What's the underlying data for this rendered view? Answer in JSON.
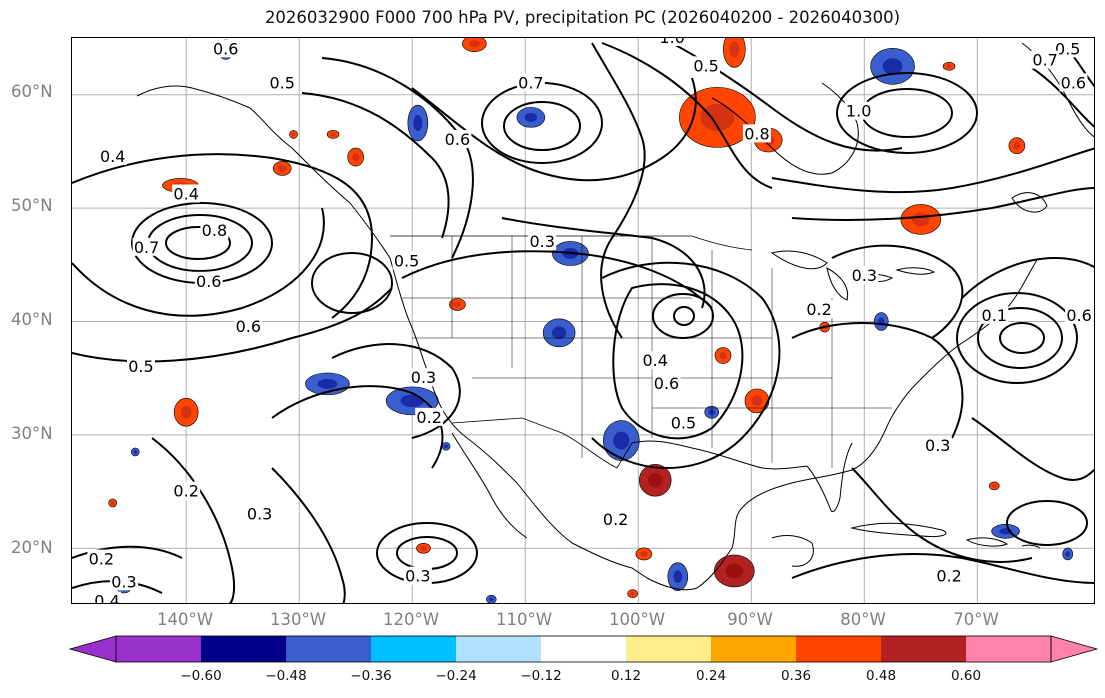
{
  "title": "2026032900 F000 700 hPa PV, precipitation PC (2026040200 - 2026040300)",
  "axes": {
    "lat_labels": [
      "60°N",
      "50°N",
      "40°N",
      "30°N",
      "20°N"
    ],
    "lon_labels": [
      "140°W",
      "130°W",
      "120°W",
      "110°W",
      "100°W",
      "90°W",
      "80°W",
      "70°W"
    ]
  },
  "colorbar": {
    "ticks": [
      "−0.60",
      "−0.48",
      "−0.36",
      "−0.24",
      "−0.12",
      "0.12",
      "0.24",
      "0.36",
      "0.48",
      "0.60"
    ],
    "colors": [
      "#9932CC",
      "#00008B",
      "#3A5FCD",
      "#00BFFF",
      "#B0E2FF",
      "#FFFFFF",
      "#FFEC8B",
      "#FFA500",
      "#FF4500",
      "#B22222",
      "#FF82AB"
    ]
  },
  "contour_labels": [
    {
      "text": "0.6",
      "lon": -136.5,
      "lat": 64.0
    },
    {
      "text": "0.5",
      "lon": -131.5,
      "lat": 61.0
    },
    {
      "text": "0.4",
      "lon": -146.5,
      "lat": 54.5
    },
    {
      "text": "0.4",
      "lon": -140.0,
      "lat": 51.2
    },
    {
      "text": "0.7",
      "lon": -143.5,
      "lat": 46.5
    },
    {
      "text": "0.8",
      "lon": -137.5,
      "lat": 48.0
    },
    {
      "text": "0.6",
      "lon": -138.0,
      "lat": 43.5
    },
    {
      "text": "0.6",
      "lon": -134.5,
      "lat": 39.5
    },
    {
      "text": "0.5",
      "lon": -144.0,
      "lat": 36.0
    },
    {
      "text": "0.5",
      "lon": -120.5,
      "lat": 45.3
    },
    {
      "text": "0.6",
      "lon": -116.0,
      "lat": 56.0
    },
    {
      "text": "0.7",
      "lon": -109.5,
      "lat": 61.0
    },
    {
      "text": "0.5",
      "lon": -94.0,
      "lat": 62.5
    },
    {
      "text": "1.0",
      "lon": -97.0,
      "lat": 65.0
    },
    {
      "text": "0.8",
      "lon": -89.5,
      "lat": 56.5
    },
    {
      "text": "1.0",
      "lon": -80.5,
      "lat": 58.5
    },
    {
      "text": "0.3",
      "lon": -108.5,
      "lat": 47.0
    },
    {
      "text": "0.3",
      "lon": -80.0,
      "lat": 44.0
    },
    {
      "text": "0.2",
      "lon": -84.0,
      "lat": 41.0
    },
    {
      "text": "0.1",
      "lon": -68.5,
      "lat": 40.5
    },
    {
      "text": "0.6",
      "lon": -61.0,
      "lat": 40.5
    },
    {
      "text": "0.4",
      "lon": -98.5,
      "lat": 36.5
    },
    {
      "text": "0.6",
      "lon": -97.5,
      "lat": 34.5
    },
    {
      "text": "0.5",
      "lon": -96.0,
      "lat": 31.0
    },
    {
      "text": "0.3",
      "lon": -119.0,
      "lat": 35.0
    },
    {
      "text": "0.2",
      "lon": -118.5,
      "lat": 31.5
    },
    {
      "text": "0.2",
      "lon": -102.0,
      "lat": 22.5
    },
    {
      "text": "0.2",
      "lon": -140.0,
      "lat": 25.0
    },
    {
      "text": "0.3",
      "lon": -133.5,
      "lat": 23.0
    },
    {
      "text": "0.3",
      "lon": -119.5,
      "lat": 17.5
    },
    {
      "text": "0.2",
      "lon": -147.5,
      "lat": 19.0
    },
    {
      "text": "0.3",
      "lon": -145.5,
      "lat": 17.0
    },
    {
      "text": "0.4",
      "lon": -147.0,
      "lat": 15.3
    },
    {
      "text": "0.3",
      "lon": -73.5,
      "lat": 29.0
    },
    {
      "text": "0.2",
      "lon": -72.5,
      "lat": 17.5
    },
    {
      "text": "0.5",
      "lon": -62.0,
      "lat": 64.0
    },
    {
      "text": "0.6",
      "lon": -61.5,
      "lat": 61.0
    },
    {
      "text": "0.7",
      "lon": -64.0,
      "lat": 63.0
    }
  ],
  "precip_blobs": [
    {
      "lon": -136.5,
      "lat": 64.0,
      "rx": 8,
      "ry": 10,
      "color": "#3A5FCD"
    },
    {
      "lon": -114.5,
      "lat": 64.5,
      "rx": 12,
      "ry": 8,
      "color": "#FF4500"
    },
    {
      "lon": -119.5,
      "lat": 57.5,
      "rx": 10,
      "ry": 18,
      "color": "#3A5FCD"
    },
    {
      "lon": -109.5,
      "lat": 58.0,
      "rx": 14,
      "ry": 10,
      "color": "#3A5FCD"
    },
    {
      "lon": -130.5,
      "lat": 56.5,
      "rx": 4,
      "ry": 4,
      "color": "#FF4500"
    },
    {
      "lon": -127.0,
      "lat": 56.5,
      "rx": 6,
      "ry": 4,
      "color": "#FF4500"
    },
    {
      "lon": -125.0,
      "lat": 54.5,
      "rx": 8,
      "ry": 9,
      "color": "#FF4500"
    },
    {
      "lon": -131.5,
      "lat": 53.5,
      "rx": 9,
      "ry": 7,
      "color": "#FF4500"
    },
    {
      "lon": -140.5,
      "lat": 52.0,
      "rx": 18,
      "ry": 7,
      "color": "#FF4500"
    },
    {
      "lon": -91.5,
      "lat": 64.0,
      "rx": 11,
      "ry": 18,
      "color": "#FF4500"
    },
    {
      "lon": -93.0,
      "lat": 58.0,
      "rx": 38,
      "ry": 30,
      "color": "#FF4500"
    },
    {
      "lon": -88.5,
      "lat": 56.0,
      "rx": 14,
      "ry": 12,
      "color": "#FF4500"
    },
    {
      "lon": -77.5,
      "lat": 62.5,
      "rx": 22,
      "ry": 18,
      "color": "#3A5FCD"
    },
    {
      "lon": -72.5,
      "lat": 62.5,
      "rx": 6,
      "ry": 4,
      "color": "#FF4500"
    },
    {
      "lon": -66.5,
      "lat": 55.5,
      "rx": 8,
      "ry": 8,
      "color": "#FF4500"
    },
    {
      "lon": -75.0,
      "lat": 49.0,
      "rx": 20,
      "ry": 15,
      "color": "#FF4500"
    },
    {
      "lon": -106.0,
      "lat": 46.0,
      "rx": 18,
      "ry": 12,
      "color": "#3A5FCD"
    },
    {
      "lon": -116.0,
      "lat": 41.5,
      "rx": 8,
      "ry": 6,
      "color": "#FF4500"
    },
    {
      "lon": -107.0,
      "lat": 39.0,
      "rx": 16,
      "ry": 14,
      "color": "#3A5FCD"
    },
    {
      "lon": -101.5,
      "lat": 29.5,
      "rx": 18,
      "ry": 20,
      "color": "#3A5FCD"
    },
    {
      "lon": -127.5,
      "lat": 34.5,
      "rx": 22,
      "ry": 11,
      "color": "#3A5FCD"
    },
    {
      "lon": -120.0,
      "lat": 33.0,
      "rx": 26,
      "ry": 14,
      "color": "#3A5FCD"
    },
    {
      "lon": -140.0,
      "lat": 32.0,
      "rx": 12,
      "ry": 14,
      "color": "#FF4500"
    },
    {
      "lon": -98.5,
      "lat": 26.0,
      "rx": 16,
      "ry": 16,
      "color": "#B22222"
    },
    {
      "lon": -92.5,
      "lat": 37.0,
      "rx": 8,
      "ry": 8,
      "color": "#FF4500"
    },
    {
      "lon": -89.5,
      "lat": 33.0,
      "rx": 12,
      "ry": 12,
      "color": "#FF4500"
    },
    {
      "lon": -93.5,
      "lat": 32.0,
      "rx": 7,
      "ry": 6,
      "color": "#3A5FCD"
    },
    {
      "lon": -83.5,
      "lat": 39.5,
      "rx": 5,
      "ry": 5,
      "color": "#FF4500"
    },
    {
      "lon": -78.5,
      "lat": 40.0,
      "rx": 7,
      "ry": 9,
      "color": "#3A5FCD"
    },
    {
      "lon": -91.5,
      "lat": 18.0,
      "rx": 20,
      "ry": 16,
      "color": "#B22222"
    },
    {
      "lon": -96.5,
      "lat": 17.5,
      "rx": 10,
      "ry": 14,
      "color": "#3A5FCD"
    },
    {
      "lon": -99.5,
      "lat": 19.5,
      "rx": 8,
      "ry": 6,
      "color": "#FF4500"
    },
    {
      "lon": -67.5,
      "lat": 21.5,
      "rx": 14,
      "ry": 7,
      "color": "#3A5FCD"
    },
    {
      "lon": -62.0,
      "lat": 19.5,
      "rx": 5,
      "ry": 6,
      "color": "#3A5FCD"
    },
    {
      "lon": -68.5,
      "lat": 25.5,
      "rx": 5,
      "ry": 4,
      "color": "#FF4500"
    },
    {
      "lon": -119.0,
      "lat": 20.0,
      "rx": 7,
      "ry": 5,
      "color": "#FF4500"
    },
    {
      "lon": -145.5,
      "lat": 16.5,
      "rx": 7,
      "ry": 5,
      "color": "#3A5FCD"
    },
    {
      "lon": -146.5,
      "lat": 24.0,
      "rx": 4,
      "ry": 4,
      "color": "#FF4500"
    },
    {
      "lon": -144.5,
      "lat": 28.5,
      "rx": 4,
      "ry": 4,
      "color": "#3A5FCD"
    },
    {
      "lon": -113.0,
      "lat": 15.5,
      "rx": 5,
      "ry": 4,
      "color": "#3A5FCD"
    },
    {
      "lon": -100.5,
      "lat": 16.0,
      "rx": 5,
      "ry": 4,
      "color": "#FF4500"
    },
    {
      "lon": -117.0,
      "lat": 29.0,
      "rx": 4,
      "ry": 4,
      "color": "#3A5FCD"
    }
  ]
}
